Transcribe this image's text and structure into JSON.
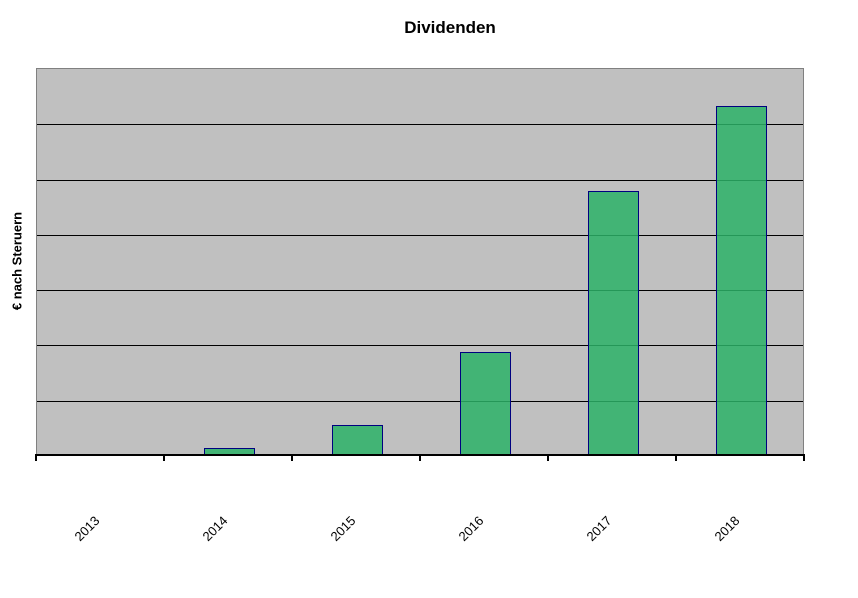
{
  "chart_data": {
    "type": "bar",
    "title": "Dividenden",
    "xlabel": "",
    "ylabel": "€ nach Steruern",
    "categories": [
      "2013",
      "2014",
      "2015",
      "2016",
      "2017",
      "2018"
    ],
    "values": [
      0,
      0.11,
      0.52,
      1.85,
      4.76,
      6.3
    ],
    "values_note": "y-axis shows no numeric tick labels; values estimated in gridline units (1 unit = one horizontal gridline interval)",
    "ylim": [
      0,
      7
    ],
    "y_gridline_count": 6,
    "grid": "horizontal gridlines on, drawn visible through semi-transparent bars",
    "legend": "none",
    "x_tick_label_rotation_deg": 45
  },
  "colors": {
    "figure_bg": "#FFFFFF",
    "plot_bg": "#C0C0C0",
    "plot_border": "#808080",
    "gridline": "#000000",
    "axis_line": "#000000",
    "bar_fill": "#2CB267",
    "bar_border": "#000080",
    "text": "#000000"
  },
  "bar_fill_opacity": 0.85
}
